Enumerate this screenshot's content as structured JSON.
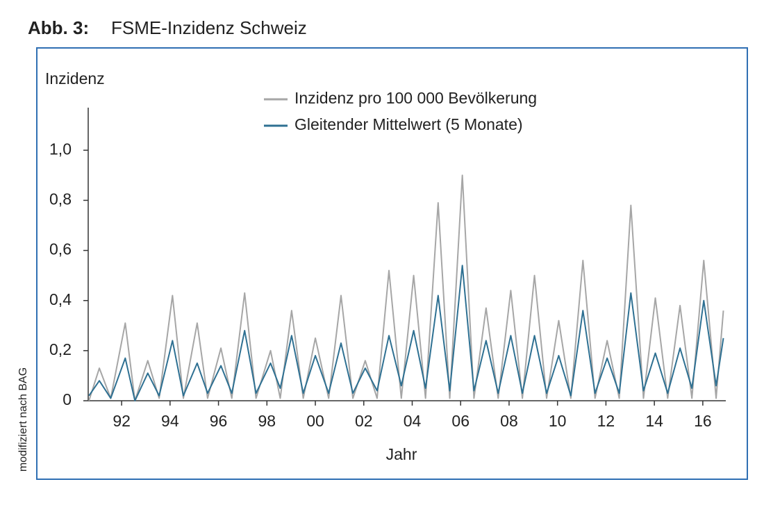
{
  "title_label": "Abb. 3:",
  "source_note": "modifiziert nach BAG",
  "chart_data": {
    "type": "line",
    "title": "FSME-Inzidenz Schweiz",
    "ylabel": "Inzidenz",
    "xlabel": "Jahr",
    "x": [
      1990.65,
      1991.08,
      1991.55,
      1992.15,
      1992.55,
      1993.08,
      1993.55,
      1994.1,
      1994.55,
      1995.12,
      1995.55,
      1996.1,
      1996.55,
      1997.08,
      1997.55,
      1998.15,
      1998.55,
      1999.02,
      1999.5,
      2000.0,
      2000.55,
      2001.06,
      2001.55,
      2002.06,
      2002.55,
      2003.04,
      2003.55,
      2004.06,
      2004.55,
      2005.07,
      2005.55,
      2006.07,
      2006.55,
      2007.05,
      2007.55,
      2008.07,
      2008.55,
      2009.05,
      2009.55,
      2010.05,
      2010.55,
      2011.05,
      2011.55,
      2012.05,
      2012.55,
      2013.03,
      2013.55,
      2014.04,
      2014.55,
      2015.06,
      2015.55,
      2016.04,
      2016.55,
      2016.85
    ],
    "series": [
      {
        "name": "Inzidenz pro 100 000 Bevölkerung",
        "color": "#a6a6a6",
        "values": [
          0.0,
          0.13,
          0.01,
          0.31,
          0.0,
          0.16,
          0.01,
          0.42,
          0.01,
          0.31,
          0.01,
          0.21,
          0.01,
          0.43,
          0.01,
          0.2,
          0.01,
          0.36,
          0.01,
          0.25,
          0.01,
          0.42,
          0.01,
          0.16,
          0.01,
          0.52,
          0.01,
          0.5,
          0.01,
          0.79,
          0.01,
          0.9,
          0.01,
          0.37,
          0.01,
          0.44,
          0.01,
          0.5,
          0.01,
          0.32,
          0.01,
          0.56,
          0.01,
          0.24,
          0.01,
          0.78,
          0.01,
          0.41,
          0.01,
          0.38,
          0.01,
          0.56,
          0.01,
          0.36
        ]
      },
      {
        "name": "Gleitender Mittelwert (5 Monate)",
        "color": "#2e7092",
        "values": [
          0.02,
          0.08,
          0.01,
          0.17,
          0.0,
          0.11,
          0.02,
          0.24,
          0.02,
          0.15,
          0.03,
          0.14,
          0.03,
          0.28,
          0.03,
          0.15,
          0.05,
          0.26,
          0.03,
          0.18,
          0.03,
          0.23,
          0.03,
          0.13,
          0.04,
          0.26,
          0.06,
          0.28,
          0.05,
          0.42,
          0.04,
          0.54,
          0.04,
          0.24,
          0.03,
          0.26,
          0.03,
          0.26,
          0.03,
          0.18,
          0.02,
          0.36,
          0.03,
          0.17,
          0.03,
          0.43,
          0.04,
          0.19,
          0.03,
          0.21,
          0.05,
          0.4,
          0.06,
          0.25
        ]
      }
    ],
    "xlim": [
      1990.62,
      2016.95
    ],
    "xticks": [
      {
        "value": 1992,
        "label": "92"
      },
      {
        "value": 1994,
        "label": "94"
      },
      {
        "value": 1996,
        "label": "96"
      },
      {
        "value": 1998,
        "label": "98"
      },
      {
        "value": 2000,
        "label": "00"
      },
      {
        "value": 2002,
        "label": "02"
      },
      {
        "value": 2004,
        "label": "04"
      },
      {
        "value": 2006,
        "label": "06"
      },
      {
        "value": 2008,
        "label": "08"
      },
      {
        "value": 2010,
        "label": "10"
      },
      {
        "value": 2012,
        "label": "12"
      },
      {
        "value": 2014,
        "label": "14"
      },
      {
        "value": 2016,
        "label": "16"
      }
    ],
    "ylim": [
      0,
      1.17
    ],
    "yticks": [
      0,
      {
        "value": 0.2,
        "label": "0,2"
      },
      {
        "value": 0.4,
        "label": "0,4"
      },
      {
        "value": 0.6,
        "label": "0,6"
      },
      {
        "value": 0.8,
        "label": "0,8"
      },
      {
        "value": 1.0,
        "label": "1,0"
      }
    ],
    "grid": false,
    "legend": "top"
  }
}
